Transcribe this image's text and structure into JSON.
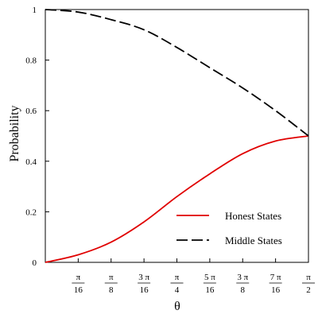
{
  "chart_data": {
    "type": "line",
    "xlabel": "θ",
    "ylabel": "Probability",
    "xlim": [
      0,
      1.5708
    ],
    "ylim": [
      0,
      1
    ],
    "grid": false,
    "legend_position": "bottom-right",
    "yticks": [
      {
        "value": 0,
        "label": "0"
      },
      {
        "value": 0.2,
        "label": "0.2"
      },
      {
        "value": 0.4,
        "label": "0.4"
      },
      {
        "value": 0.6,
        "label": "0.6"
      },
      {
        "value": 0.8,
        "label": "0.8"
      },
      {
        "value": 1,
        "label": "1"
      }
    ],
    "xticks": [
      {
        "value": 0.19635,
        "num": "π",
        "den": "16"
      },
      {
        "value": 0.3927,
        "num": "π",
        "den": "8"
      },
      {
        "value": 0.58905,
        "num": "3 π",
        "den": "16"
      },
      {
        "value": 0.7854,
        "num": "π",
        "den": "4"
      },
      {
        "value": 0.98175,
        "num": "5 π",
        "den": "16"
      },
      {
        "value": 1.1781,
        "num": "3 π",
        "den": "8"
      },
      {
        "value": 1.37445,
        "num": "7 π",
        "den": "16"
      },
      {
        "value": 1.5708,
        "num": "π",
        "den": "2"
      }
    ],
    "series": [
      {
        "name": "Honest States",
        "color": "#e00000",
        "dash": "solid",
        "x": [
          0,
          0.19635,
          0.3927,
          0.58905,
          0.7854,
          0.98175,
          1.1781,
          1.37445,
          1.5708
        ],
        "y": [
          0.0,
          0.03,
          0.08,
          0.16,
          0.26,
          0.35,
          0.43,
          0.48,
          0.5
        ]
      },
      {
        "name": "Middle States",
        "color": "#000000",
        "dash": "dashed",
        "x": [
          0,
          0.19635,
          0.3927,
          0.58905,
          0.7854,
          0.98175,
          1.1781,
          1.37445,
          1.5708
        ],
        "y": [
          1.0,
          0.99,
          0.96,
          0.92,
          0.85,
          0.77,
          0.69,
          0.6,
          0.5
        ]
      }
    ]
  }
}
